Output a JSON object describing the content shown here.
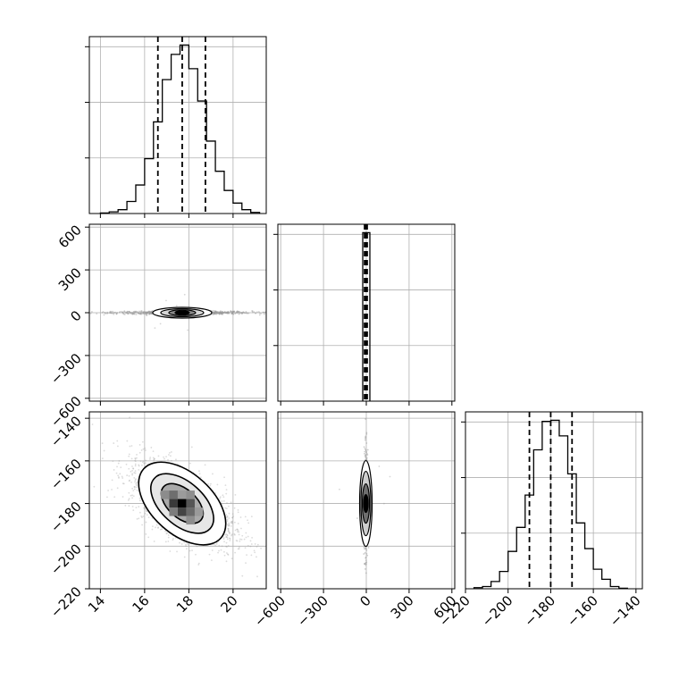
{
  "chart_data": {
    "type": "corner",
    "title": "",
    "grid": true,
    "colors": {
      "line": "#000000",
      "grid": "#b0b0b0",
      "scatter": "#9a9a9a"
    },
    "params": [
      {
        "range": [
          13.5,
          21.5
        ],
        "ticks": [
          14,
          16,
          18,
          20
        ],
        "tick_labels": [
          "14",
          "16",
          "18",
          "20"
        ],
        "quantiles": [
          16.6,
          17.7,
          18.75
        ]
      },
      {
        "range": [
          -620,
          620
        ],
        "ticks": [
          -600,
          -300,
          0,
          300,
          600
        ],
        "tick_labels": [
          "−600",
          "−300",
          "0",
          "300",
          "600"
        ],
        "quantiles": [
          -12,
          -3,
          6
        ]
      },
      {
        "range": [
          -220,
          -137
        ],
        "ticks": [
          -220,
          -200,
          -180,
          -160,
          -140
        ],
        "tick_labels": [
          "−220",
          "−200",
          "−180",
          "−160",
          "−140"
        ],
        "quantiles": [
          -190,
          -180,
          -170
        ]
      }
    ],
    "histograms": [
      {
        "edges": [
          14.0,
          14.4,
          14.8,
          15.2,
          15.6,
          16.0,
          16.4,
          16.8,
          17.2,
          17.6,
          18.0,
          18.4,
          18.8,
          19.2,
          19.6,
          20.0,
          20.4,
          20.8,
          21.2
        ],
        "counts": [
          1,
          3,
          7,
          22,
          52,
          100,
          167,
          244,
          290,
          307,
          264,
          205,
          132,
          77,
          42,
          19,
          7,
          2
        ]
      },
      {
        "edges": [
          -25,
          0,
          25
        ],
        "counts": [
          1000,
          1000
        ]
      },
      {
        "edges": [
          -216,
          -212,
          -208,
          -204,
          -200,
          -196,
          -192,
          -188,
          -184,
          -180,
          -176,
          -172,
          -168,
          -164,
          -160,
          -156,
          -152,
          -148,
          -144
        ],
        "counts": [
          2,
          4,
          13,
          31,
          67,
          110,
          168,
          249,
          300,
          302,
          274,
          206,
          118,
          72,
          35,
          17,
          4,
          1
        ]
      }
    ],
    "pairs": [
      {
        "x": 0,
        "y": 1,
        "center": [
          17.7,
          0
        ],
        "spread": [
          1.2,
          10
        ],
        "corr": 0
      },
      {
        "x": 0,
        "y": 2,
        "center": [
          17.7,
          -180
        ],
        "spread": [
          1.2,
          10
        ],
        "corr": -0.6
      },
      {
        "x": 1,
        "y": 2,
        "center": [
          -3,
          -180
        ],
        "spread": [
          10,
          10
        ],
        "corr": 0
      }
    ]
  }
}
